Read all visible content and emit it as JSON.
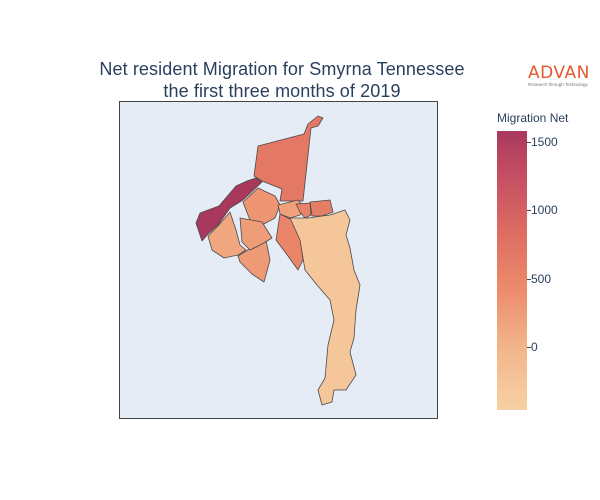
{
  "title": {
    "line1": "Net resident Migration for Smyrna Tennessee",
    "line2": "the first three months of 2019"
  },
  "logo": {
    "name": "ADVAN",
    "tagline": "Research through Technology"
  },
  "colorbar": {
    "title": "Migration Net",
    "ticks": [
      {
        "label": "1500",
        "value": 1500
      },
      {
        "label": "1000",
        "value": 1000
      },
      {
        "label": "500",
        "value": 500
      },
      {
        "label": "0",
        "value": 0
      }
    ],
    "min": -460,
    "max": 1580,
    "colors": [
      "#f7d1a3",
      "#f3b58b",
      "#ec8a6a",
      "#dd6c61",
      "#c54e62",
      "#a8395d"
    ]
  },
  "map": {
    "background": "#e5ecf6",
    "region_border": "#4a4a4a",
    "regions": [
      {
        "id": "north-large",
        "value": 600
      },
      {
        "id": "northwest-strip",
        "value": 1580
      },
      {
        "id": "west-center",
        "value": 80
      },
      {
        "id": "southwest",
        "value": 200
      },
      {
        "id": "center-west",
        "value": 240
      },
      {
        "id": "center-small",
        "value": 150
      },
      {
        "id": "center-east-small",
        "value": 450
      },
      {
        "id": "east-small",
        "value": 520
      },
      {
        "id": "center-strip",
        "value": 420
      },
      {
        "id": "central",
        "value": 180
      },
      {
        "id": "south-long",
        "value": -300
      }
    ]
  }
}
